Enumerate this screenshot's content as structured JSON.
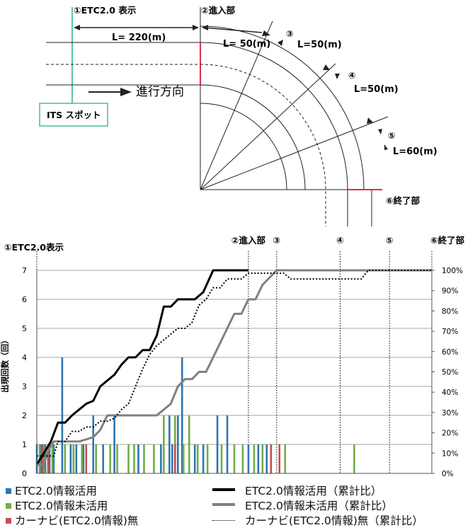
{
  "diagram": {
    "labels": {
      "etc_display": "①ETC2.0 表示",
      "entry": "②進入部",
      "end": "⑥終了部",
      "n3": "③",
      "n4": "④",
      "n5": "⑤",
      "l220": "L= 220(m)",
      "l50_entry": "L= 50(m)",
      "l50_3": "L=50(m)",
      "l50_4": "L=50(m)",
      "l60": "L=60(m)",
      "direction": "進行方向",
      "its_spot": "ITS スポット"
    }
  },
  "chart_data": {
    "type": "bar",
    "axis_labels": {
      "ylabel": "出現回数（回）"
    },
    "top_markers": [
      "①ETC2.0表示",
      "②進入部",
      "③",
      "④",
      "⑤",
      "⑥終了部"
    ],
    "ylim": [
      0,
      7
    ],
    "y_ticks": [
      "0",
      "1",
      "2",
      "3",
      "4",
      "5",
      "6",
      "7"
    ],
    "y2_ticks": [
      "0%",
      "10%",
      "20%",
      "30%",
      "40%",
      "50%",
      "60%",
      "70%",
      "80%",
      "90%",
      "100%"
    ],
    "x_range": [
      0,
      280
    ],
    "marker_positions": [
      0,
      150,
      170,
      215,
      250,
      280
    ],
    "bar_series": [
      {
        "name": "ETC2.0情報活用",
        "color": "#2e75b6",
        "values": [
          [
            0,
            1
          ],
          [
            3,
            1
          ],
          [
            6,
            1
          ],
          [
            9,
            1
          ],
          [
            12,
            1
          ],
          [
            18,
            4
          ],
          [
            24,
            1
          ],
          [
            28,
            1
          ],
          [
            33,
            1
          ],
          [
            40,
            2
          ],
          [
            47,
            1
          ],
          [
            55,
            2
          ],
          [
            72,
            1
          ],
          [
            88,
            1
          ],
          [
            94,
            2
          ],
          [
            96,
            1
          ],
          [
            100,
            2
          ],
          [
            103,
            4
          ],
          [
            112,
            1
          ],
          [
            118,
            1
          ],
          [
            128,
            2
          ],
          [
            135,
            2
          ],
          [
            150,
            1
          ],
          [
            157,
            1
          ],
          [
            163,
            1
          ]
        ]
      },
      {
        "name": "ETC2.0情報未活用",
        "color": "#70ad47",
        "values": [
          [
            2,
            1
          ],
          [
            5,
            1
          ],
          [
            11,
            1
          ],
          [
            20,
            1
          ],
          [
            26,
            1
          ],
          [
            32,
            1
          ],
          [
            42,
            1
          ],
          [
            52,
            1
          ],
          [
            57,
            1
          ],
          [
            65,
            1
          ],
          [
            69,
            1
          ],
          [
            76,
            1
          ],
          [
            83,
            1
          ],
          [
            90,
            2
          ],
          [
            98,
            2
          ],
          [
            104,
            1
          ],
          [
            108,
            2
          ],
          [
            114,
            1
          ],
          [
            121,
            1
          ],
          [
            131,
            1
          ],
          [
            140,
            1
          ],
          [
            146,
            1
          ],
          [
            154,
            1
          ],
          [
            160,
            1
          ],
          [
            166,
            1
          ],
          [
            176,
            1
          ],
          [
            225,
            1
          ]
        ]
      },
      {
        "name": "カーナビ(ETC2.0情報)無",
        "color": "#c0504d",
        "values": [
          [
            4,
            1
          ],
          [
            8,
            1
          ],
          [
            35,
            1
          ],
          [
            98,
            1
          ],
          [
            166,
            1
          ],
          [
            172,
            1
          ]
        ]
      }
    ],
    "line_series": [
      {
        "name": "ETC2.0情報活用（累計比）",
        "color": "#000000",
        "style": "solid-thick",
        "points": [
          [
            0,
            0.3
          ],
          [
            5,
            0.7
          ],
          [
            10,
            1.1
          ],
          [
            15,
            1.75
          ],
          [
            20,
            1.75
          ],
          [
            25,
            2.0
          ],
          [
            30,
            2.2
          ],
          [
            35,
            2.4
          ],
          [
            40,
            2.5
          ],
          [
            45,
            3.0
          ],
          [
            50,
            3.2
          ],
          [
            55,
            3.4
          ],
          [
            60,
            3.75
          ],
          [
            65,
            4.0
          ],
          [
            70,
            4.0
          ],
          [
            75,
            4.25
          ],
          [
            80,
            4.25
          ],
          [
            85,
            4.75
          ],
          [
            90,
            5.75
          ],
          [
            95,
            5.75
          ],
          [
            100,
            6.0
          ],
          [
            105,
            6.0
          ],
          [
            112,
            6.0
          ],
          [
            118,
            6.25
          ],
          [
            125,
            7.0
          ],
          [
            150,
            7.0
          ]
        ]
      },
      {
        "name": "ETC2.0情報未活用（累計比）",
        "color": "#808080",
        "style": "solid-thick",
        "points": [
          [
            0,
            0.3
          ],
          [
            5,
            0.3
          ],
          [
            8,
            0.8
          ],
          [
            12,
            1.1
          ],
          [
            20,
            1.1
          ],
          [
            30,
            1.1
          ],
          [
            40,
            1.25
          ],
          [
            45,
            1.5
          ],
          [
            50,
            2.0
          ],
          [
            55,
            2.0
          ],
          [
            60,
            2.0
          ],
          [
            65,
            2.0
          ],
          [
            70,
            2.0
          ],
          [
            75,
            2.0
          ],
          [
            80,
            2.0
          ],
          [
            85,
            2.0
          ],
          [
            90,
            2.2
          ],
          [
            95,
            2.4
          ],
          [
            100,
            3.0
          ],
          [
            105,
            3.25
          ],
          [
            110,
            3.25
          ],
          [
            115,
            3.5
          ],
          [
            120,
            3.5
          ],
          [
            125,
            4.0
          ],
          [
            130,
            4.5
          ],
          [
            135,
            5.0
          ],
          [
            140,
            5.5
          ],
          [
            145,
            5.5
          ],
          [
            150,
            6.0
          ],
          [
            155,
            6.0
          ],
          [
            160,
            6.5
          ],
          [
            170,
            7.0
          ],
          [
            280,
            7.0
          ]
        ]
      },
      {
        "name": "カーナビ(ETC2.0情報)無（累計比）",
        "color": "#000000",
        "style": "dotted",
        "points": [
          [
            0,
            0.6
          ],
          [
            10,
            0.6
          ],
          [
            12,
            0.6
          ],
          [
            15,
            1.1
          ],
          [
            20,
            1.1
          ],
          [
            25,
            1.45
          ],
          [
            30,
            1.45
          ],
          [
            35,
            1.6
          ],
          [
            40,
            1.6
          ],
          [
            45,
            1.8
          ],
          [
            50,
            1.8
          ],
          [
            55,
            1.9
          ],
          [
            60,
            2.2
          ],
          [
            65,
            2.4
          ],
          [
            70,
            3.0
          ],
          [
            75,
            3.6
          ],
          [
            80,
            4.1
          ],
          [
            85,
            4.4
          ],
          [
            90,
            4.6
          ],
          [
            95,
            4.8
          ],
          [
            100,
            5.0
          ],
          [
            105,
            5.0
          ],
          [
            110,
            5.2
          ],
          [
            115,
            5.8
          ],
          [
            120,
            6.0
          ],
          [
            125,
            6.4
          ],
          [
            130,
            6.4
          ],
          [
            135,
            6.7
          ],
          [
            140,
            6.7
          ],
          [
            145,
            6.7
          ],
          [
            150,
            6.9
          ],
          [
            155,
            6.9
          ],
          [
            160,
            6.9
          ],
          [
            165,
            6.9
          ],
          [
            170,
            6.9
          ],
          [
            175,
            6.9
          ],
          [
            180,
            6.7
          ],
          [
            190,
            6.7
          ],
          [
            200,
            6.7
          ],
          [
            210,
            6.7
          ],
          [
            215,
            6.7
          ],
          [
            220,
            6.7
          ],
          [
            225,
            6.7
          ],
          [
            230,
            6.7
          ],
          [
            235,
            7.0
          ],
          [
            280,
            7.0
          ]
        ]
      }
    ],
    "grid": true
  },
  "legend": {
    "items": [
      {
        "label": "ETC2.0情報活用",
        "kind": "box",
        "color": "#2e75b6"
      },
      {
        "label": "ETC2.0情報活用（累計比）",
        "kind": "line",
        "color": "#000000"
      },
      {
        "label": "ETC2.0情報未活用",
        "kind": "box",
        "color": "#70ad47"
      },
      {
        "label": "ETC2.0情報未活用（累計比）",
        "kind": "line",
        "color": "#808080"
      },
      {
        "label": "カーナビ(ETC2.0情報)無",
        "kind": "box",
        "color": "#c0504d"
      },
      {
        "label": "カーナビ(ETC2.0情報)無（累計比）",
        "kind": "dots",
        "color": "#000000"
      }
    ]
  }
}
